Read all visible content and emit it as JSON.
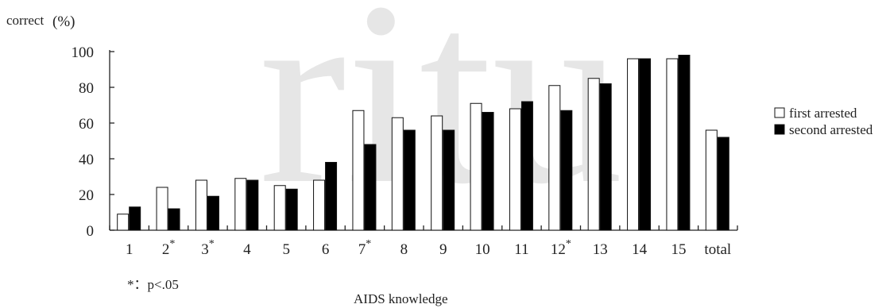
{
  "chart_data": {
    "type": "bar",
    "ylabel": "correct",
    "yunit": "(%)",
    "xlabel": "AIDS knowledge",
    "footnote": "*：p<.05",
    "ylim": [
      0,
      100
    ],
    "yticks": [
      0,
      20,
      40,
      60,
      80,
      100
    ],
    "categories": [
      "1",
      "2",
      "3",
      "4",
      "5",
      "6",
      "7",
      "8",
      "9",
      "10",
      "11",
      "12",
      "13",
      "14",
      "15",
      "total"
    ],
    "significance_marker": "*",
    "significant_categories": [
      "2",
      "3",
      "7",
      "12"
    ],
    "legend_position": "right",
    "series": [
      {
        "name": "first arrested",
        "fill": "#ffffff",
        "values": [
          9,
          24,
          28,
          29,
          25,
          28,
          67,
          63,
          64,
          71,
          68,
          81,
          85,
          96,
          96,
          56
        ]
      },
      {
        "name": "second arrested",
        "fill": "#000000",
        "values": [
          13,
          12,
          19,
          28,
          23,
          38,
          48,
          56,
          56,
          66,
          72,
          67,
          82,
          96,
          98,
          52
        ]
      }
    ],
    "watermark": "ritu"
  }
}
